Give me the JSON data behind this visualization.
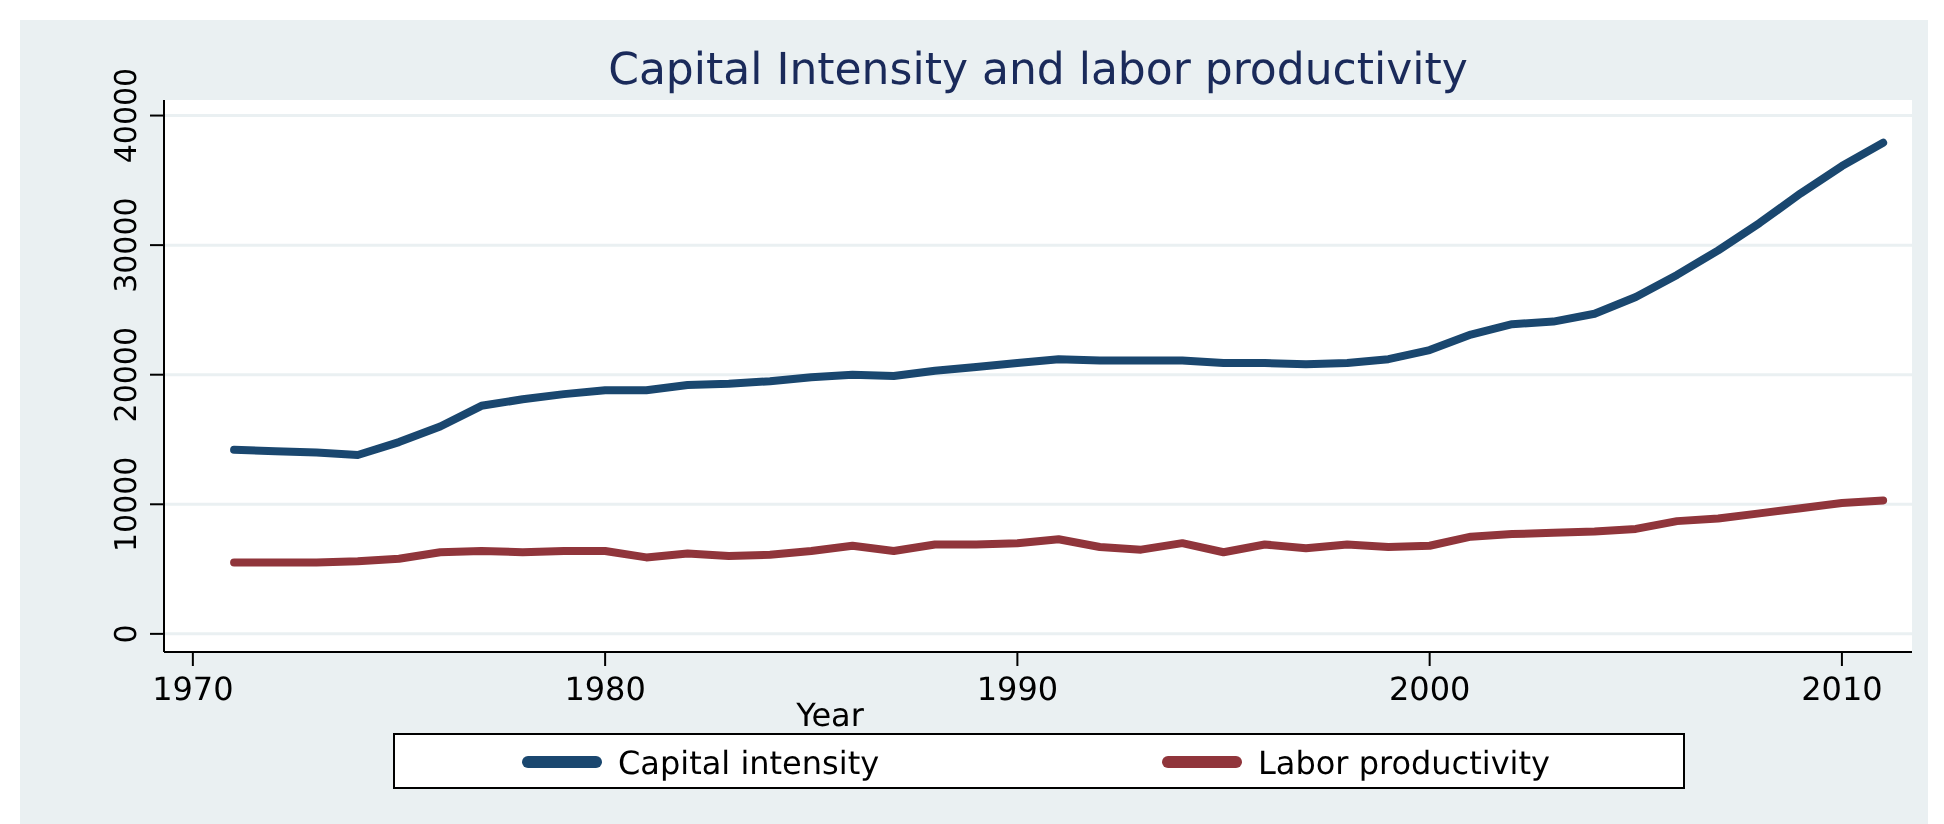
{
  "chart_data": {
    "type": "line",
    "title": "Capital Intensity and labor productivity",
    "xlabel": "Year",
    "x": [
      1971,
      1972,
      1973,
      1974,
      1975,
      1976,
      1977,
      1978,
      1979,
      1980,
      1981,
      1982,
      1983,
      1984,
      1985,
      1986,
      1987,
      1988,
      1989,
      1990,
      1991,
      1992,
      1993,
      1994,
      1995,
      1996,
      1997,
      1998,
      1999,
      2000,
      2001,
      2002,
      2003,
      2004,
      2005,
      2006,
      2007,
      2008,
      2009,
      2010,
      2011
    ],
    "series": [
      {
        "name": "Capital intensity",
        "color": "#1a476f",
        "values": [
          14200,
          14100,
          14000,
          13800,
          14800,
          16000,
          17600,
          18100,
          18500,
          18800,
          18800,
          19200,
          19300,
          19500,
          19800,
          20000,
          19900,
          20300,
          20600,
          20900,
          21200,
          21100,
          21100,
          21100,
          20900,
          20900,
          20800,
          20900,
          21200,
          21900,
          23100,
          23900,
          24100,
          24700,
          26000,
          27700,
          29600,
          31700,
          34000,
          36100,
          37900
        ]
      },
      {
        "name": "Labor productivity",
        "color": "#90353b",
        "values": [
          5500,
          5500,
          5500,
          5600,
          5800,
          6300,
          6400,
          6300,
          6400,
          6400,
          5900,
          6200,
          6000,
          6100,
          6400,
          6800,
          6400,
          6900,
          6900,
          7000,
          7300,
          6700,
          6500,
          7000,
          6300,
          6900,
          6600,
          6900,
          6700,
          6800,
          7500,
          7700,
          7800,
          7900,
          8100,
          8700,
          8900,
          9300,
          9700,
          10100,
          10300
        ]
      }
    ],
    "xlim": [
      1969.3,
      2011.7
    ],
    "xticks": [
      1970,
      1980,
      1990,
      2000,
      2010
    ],
    "ylim": [
      -1400,
      41200
    ],
    "yticks": [
      0,
      10000,
      20000,
      30000,
      40000
    ],
    "grid": "y",
    "legend": "bottom",
    "marker": "none",
    "line_style": "solid"
  }
}
